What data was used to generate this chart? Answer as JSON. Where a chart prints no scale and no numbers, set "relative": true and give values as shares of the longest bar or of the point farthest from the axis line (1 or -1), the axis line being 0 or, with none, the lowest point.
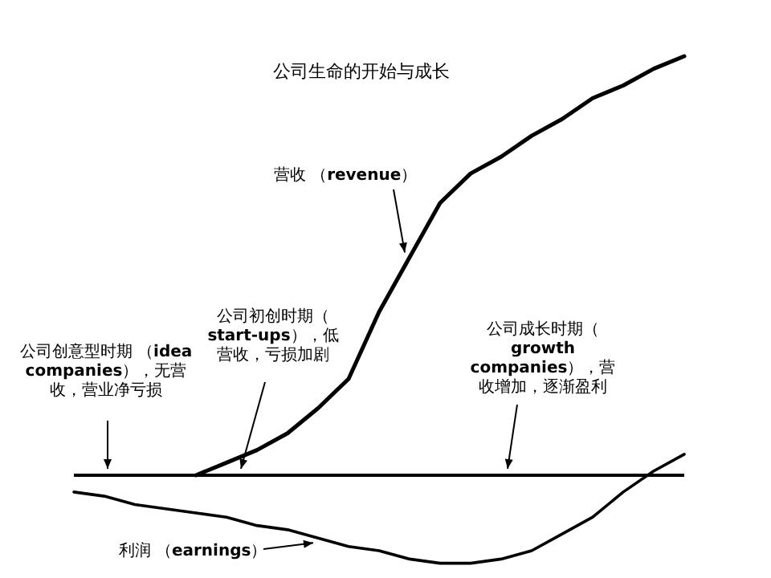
{
  "chart_data": {
    "type": "line",
    "title": "公司生命的开始与成长",
    "relative": true,
    "categories": [
      null,
      null,
      null,
      null,
      null,
      null,
      null,
      null,
      null,
      null,
      null,
      null,
      null,
      null,
      null,
      null,
      null,
      null,
      null,
      null,
      null
    ],
    "series": [
      {
        "name": "营收 （revenue）",
        "color": "#000000",
        "values": [
          null,
          null,
          null,
          null,
          0,
          0.03,
          0.06,
          0.1,
          0.16,
          0.23,
          0.39,
          0.52,
          0.65,
          0.72,
          0.76,
          0.81,
          0.85,
          0.9,
          0.93,
          0.97,
          1
        ]
      },
      {
        "name": "利润 （earnings）",
        "color": "#000000",
        "values": [
          -0.04,
          -0.05,
          -0.07,
          -0.08,
          -0.09,
          -0.1,
          -0.12,
          -0.13,
          -0.15,
          -0.17,
          -0.18,
          -0.2,
          -0.21,
          -0.21,
          -0.2,
          -0.18,
          -0.14,
          -0.1,
          -0.04,
          0.01,
          0.05
        ]
      }
    ],
    "annotations": [
      "公司创意型时期 （idea companies），无营收，营业净亏损",
      "公司初创时期（start-ups），低营收，亏损加剧",
      "公司成长时期（growth companies），营收增加，逐渐盈利"
    ]
  }
}
